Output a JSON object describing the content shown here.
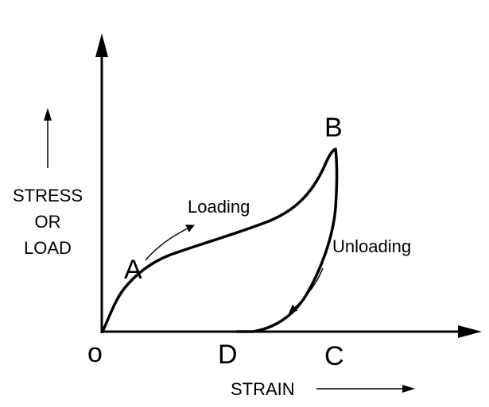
{
  "points": {
    "origin": "o",
    "a": "A",
    "b": "B",
    "c": "C",
    "d": "D"
  },
  "axes": {
    "y_label_line1": "STRESS",
    "y_label_line2": "OR",
    "y_label_line3": "LOAD",
    "x_label": "STRAIN"
  },
  "annotations": {
    "loading": "Loading",
    "unloading": "Unloading"
  },
  "colors": {
    "ink": "#000000",
    "background": "#ffffff"
  }
}
